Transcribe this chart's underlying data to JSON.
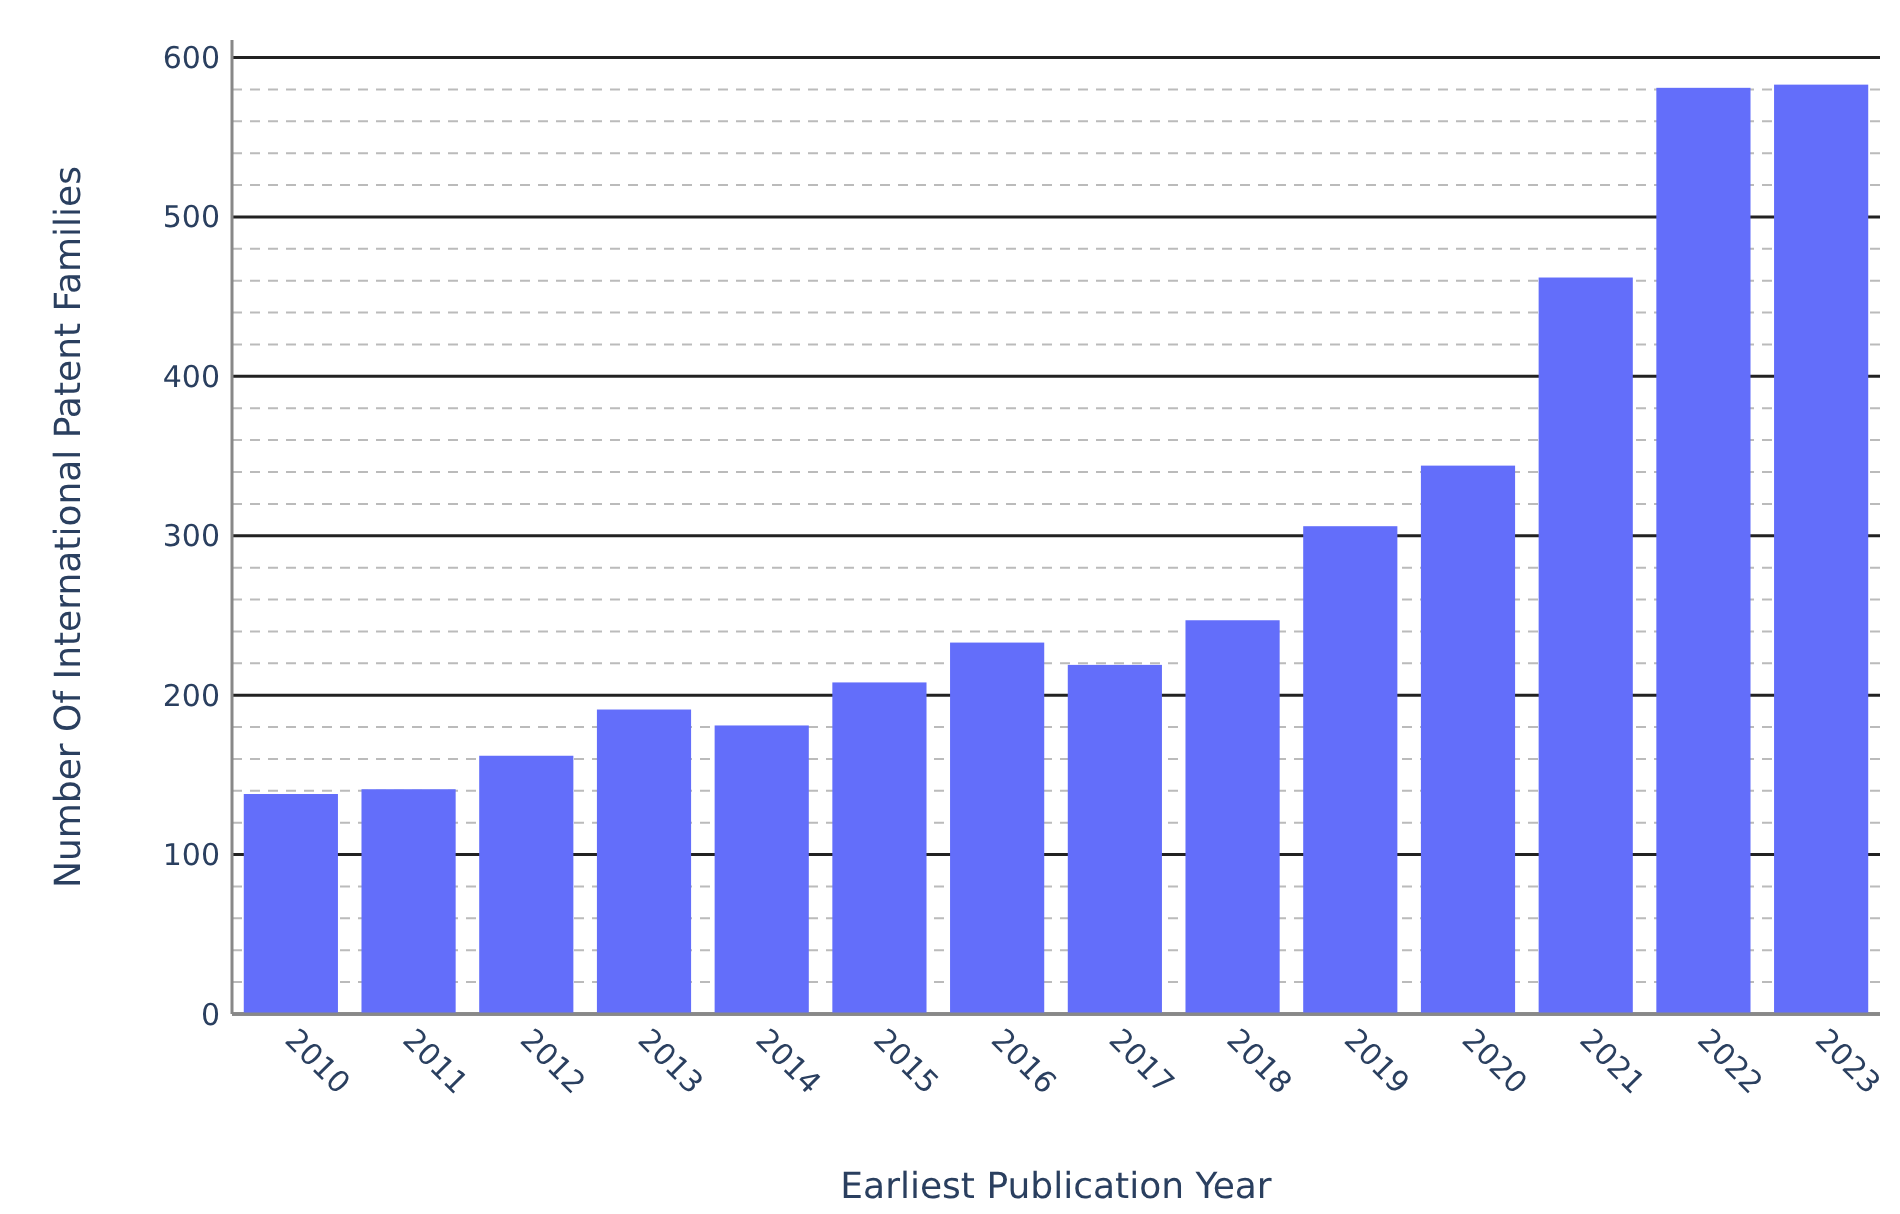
{
  "chart_data": {
    "type": "bar",
    "xlabel": "Earliest Publication Year",
    "ylabel": "Number Of International Patent Families",
    "categories": [
      "2010",
      "2011",
      "2012",
      "2013",
      "2014",
      "2015",
      "2016",
      "2017",
      "2018",
      "2019",
      "2020",
      "2021",
      "2022",
      "2023"
    ],
    "values": [
      138,
      141,
      162,
      191,
      181,
      208,
      233,
      219,
      247,
      306,
      344,
      462,
      581,
      583
    ],
    "color": "#636efa",
    "ylim": [
      0,
      611
    ],
    "yticks": [
      0,
      {
        "value": 20,
        "label": null
      },
      {
        "value": 40,
        "label": null
      },
      {
        "value": 60,
        "label": null
      },
      {
        "value": 80,
        "label": null
      },
      100,
      {
        "value": 120,
        "label": null
      },
      {
        "value": 140,
        "label": null
      },
      {
        "value": 160,
        "label": null
      },
      {
        "value": 180,
        "label": null
      },
      200,
      {
        "value": 220,
        "label": null
      },
      {
        "value": 240,
        "label": null
      },
      {
        "value": 260,
        "label": null
      },
      {
        "value": 280,
        "label": null
      },
      300,
      {
        "value": 320,
        "label": null
      },
      {
        "value": 340,
        "label": null
      },
      {
        "value": 360,
        "label": null
      },
      {
        "value": 380,
        "label": null
      },
      400,
      {
        "value": 420,
        "label": null
      },
      {
        "value": 440,
        "label": null
      },
      {
        "value": 460,
        "label": null
      },
      {
        "value": 480,
        "label": null
      },
      500,
      {
        "value": 520,
        "label": null
      },
      {
        "value": 540,
        "label": null
      },
      {
        "value": 560,
        "label": null
      },
      {
        "value": 580,
        "label": null
      },
      600
    ],
    "grid": "y"
  }
}
